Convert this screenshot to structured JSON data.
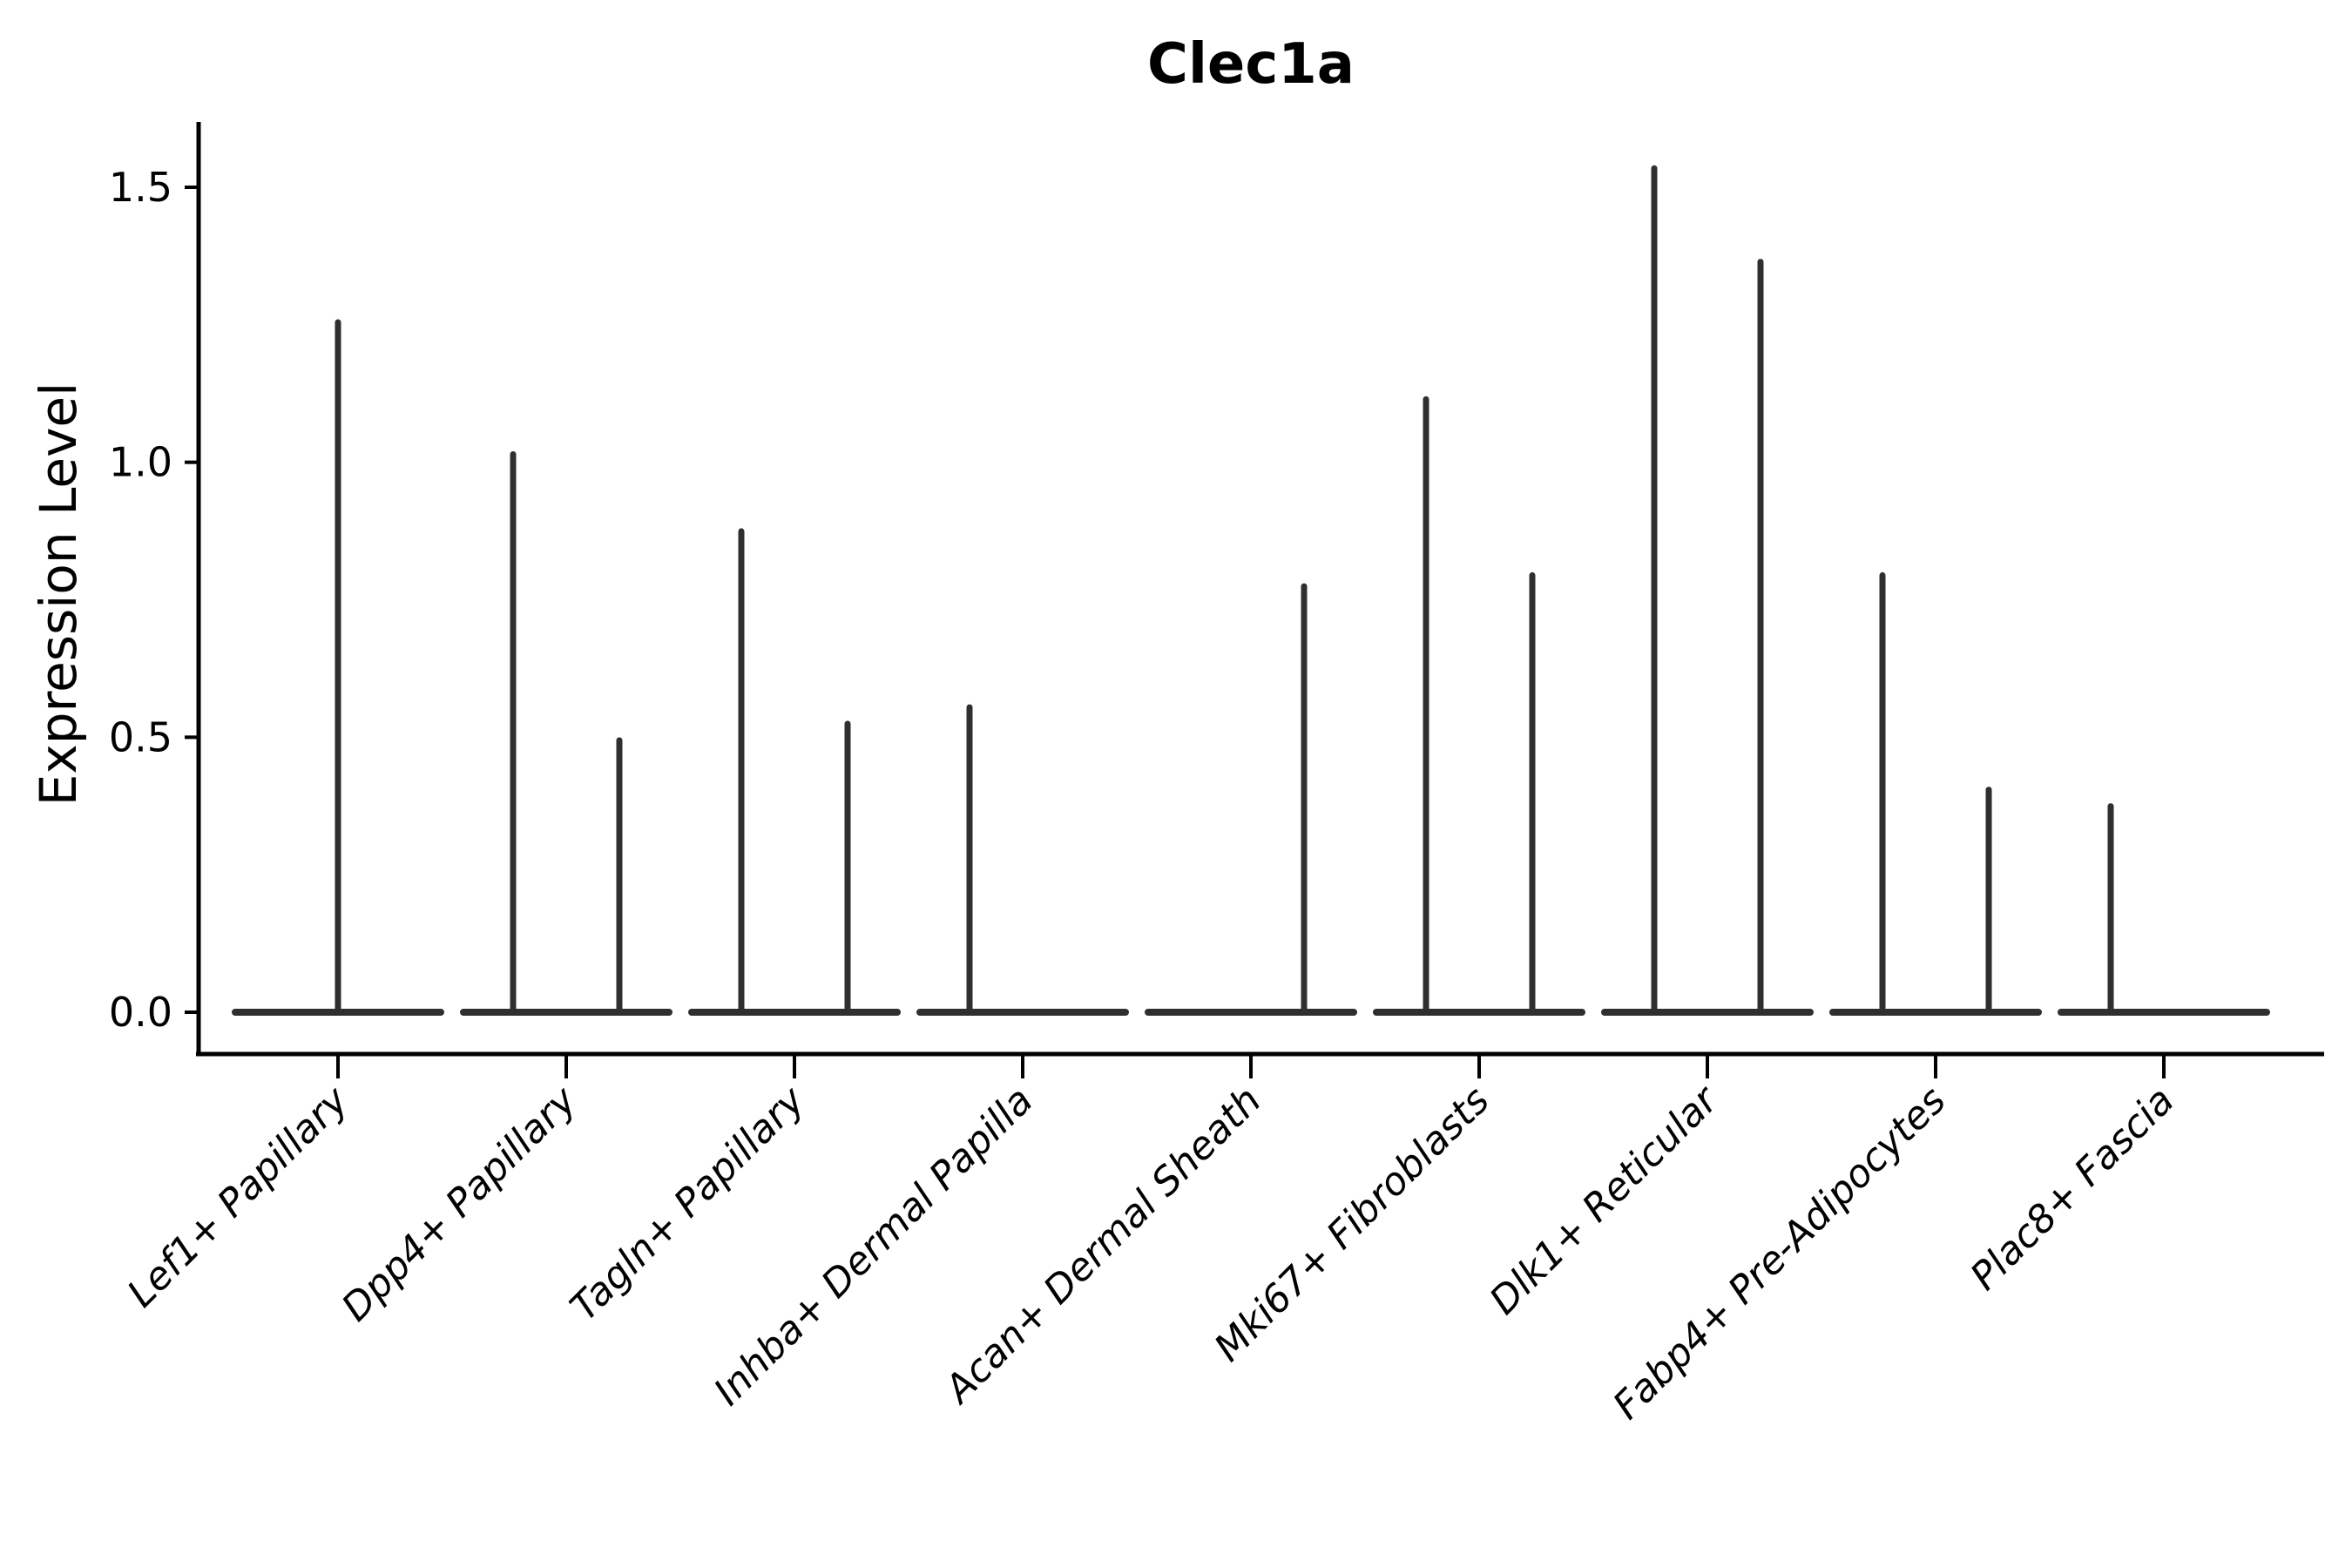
{
  "chart_data": {
    "type": "violin",
    "title": "Clec1a",
    "ylabel": "Expression Level",
    "xlabel": "",
    "yticks": [
      0.0,
      0.5,
      1.0,
      1.5
    ],
    "ylim": [
      -0.076,
      1.62
    ],
    "grid": false,
    "legend": false,
    "x_tick_label_rotation_deg": 45,
    "x_tick_label_style": "italic",
    "categories": [
      "Lef1+ Papillary",
      "Dpp4+ Papillary",
      "Tagln+ Papillary",
      "Inhba+ Dermal Papilla",
      "Acan+ Dermal Sheath",
      "Mki67+ Fibroblasts",
      "Dlk1+ Reticular",
      "Fabp4+ Pre-Adipocytes",
      "Plac8+ Fascia"
    ],
    "violins": [
      {
        "category": "Lef1+ Papillary",
        "baseline": 0.0,
        "spikes": [
          {
            "pos": "center",
            "max": 1.26
          }
        ]
      },
      {
        "category": "Dpp4+ Papillary",
        "baseline": 0.0,
        "spikes": [
          {
            "pos": "left",
            "max": 1.02
          },
          {
            "pos": "right",
            "max": 0.5
          }
        ]
      },
      {
        "category": "Tagln+ Papillary",
        "baseline": 0.0,
        "spikes": [
          {
            "pos": "left",
            "max": 0.88
          },
          {
            "pos": "right",
            "max": 0.53
          }
        ]
      },
      {
        "category": "Inhba+ Dermal Papilla",
        "baseline": 0.0,
        "spikes": [
          {
            "pos": "left",
            "max": 0.56
          }
        ]
      },
      {
        "category": "Acan+ Dermal Sheath",
        "baseline": 0.0,
        "spikes": [
          {
            "pos": "right",
            "max": 0.78
          }
        ]
      },
      {
        "category": "Mki67+ Fibroblasts",
        "baseline": 0.0,
        "spikes": [
          {
            "pos": "left",
            "max": 1.12
          },
          {
            "pos": "right",
            "max": 0.8
          }
        ]
      },
      {
        "category": "Dlk1+ Reticular",
        "baseline": 0.0,
        "spikes": [
          {
            "pos": "left",
            "max": 1.54
          },
          {
            "pos": "right",
            "max": 1.37
          }
        ]
      },
      {
        "category": "Fabp4+ Pre-Adipocytes",
        "baseline": 0.0,
        "spikes": [
          {
            "pos": "left",
            "max": 0.8
          },
          {
            "pos": "right",
            "max": 0.41
          }
        ]
      },
      {
        "category": "Plac8+ Fascia",
        "baseline": 0.0,
        "spikes": [
          {
            "pos": "left",
            "max": 0.38
          }
        ]
      }
    ],
    "colors": {
      "violin": "#2f2f2f",
      "axis": "#000000",
      "text": "#000000",
      "background": "#ffffff"
    }
  }
}
